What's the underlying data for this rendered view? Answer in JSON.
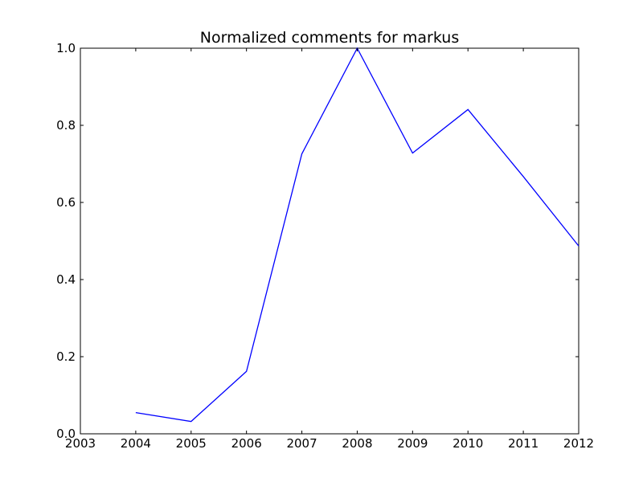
{
  "chart_data": {
    "type": "line",
    "title": "Normalized comments for markus",
    "xlabel": "",
    "ylabel": "",
    "xlim": [
      2003,
      2012
    ],
    "ylim": [
      0.0,
      1.0
    ],
    "x_ticks": [
      2003,
      2004,
      2005,
      2006,
      2007,
      2008,
      2009,
      2010,
      2011,
      2012
    ],
    "x_tick_labels": [
      "2003",
      "2004",
      "2005",
      "2006",
      "2007",
      "2008",
      "2009",
      "2010",
      "2011",
      "2012"
    ],
    "y_ticks": [
      0.0,
      0.2,
      0.4,
      0.6,
      0.8,
      1.0
    ],
    "y_tick_labels": [
      "0.0",
      "0.2",
      "0.4",
      "0.6",
      "0.8",
      "1.0"
    ],
    "grid": false,
    "series": [
      {
        "color": "#0000ff",
        "x": [
          2004,
          2005,
          2006,
          2007,
          2008,
          2009,
          2010,
          2011,
          2012
        ],
        "values": [
          0.055,
          0.032,
          0.162,
          0.726,
          1.0,
          0.728,
          0.841,
          0.667,
          0.487
        ]
      }
    ]
  }
}
